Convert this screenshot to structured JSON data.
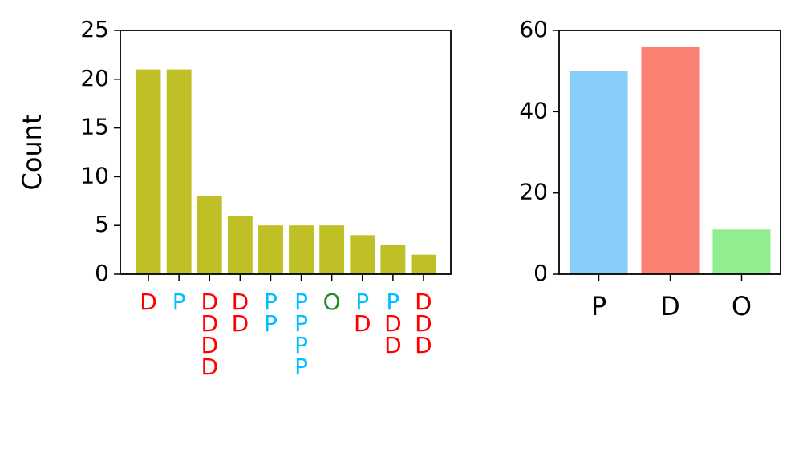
{
  "chart_data": [
    {
      "type": "bar",
      "ylabel": "Count",
      "categories": [
        [
          "D"
        ],
        [
          "P"
        ],
        [
          "D",
          "D",
          "D",
          "D"
        ],
        [
          "D",
          "D"
        ],
        [
          "P",
          "P"
        ],
        [
          "P",
          "P",
          "P",
          "P"
        ],
        [
          "O"
        ],
        [
          "P",
          "D"
        ],
        [
          "P",
          "D",
          "D"
        ],
        [
          "D",
          "D",
          "D"
        ]
      ],
      "values": [
        21,
        21,
        8,
        6,
        5,
        5,
        5,
        4,
        3,
        2
      ],
      "color": "#bfbf26",
      "label_colors": {
        "D": "#ff0000",
        "P": "#00bfff",
        "O": "#228b22"
      },
      "ylim": [
        0,
        25
      ],
      "yticks": [
        0,
        5,
        10,
        15,
        20,
        25
      ]
    },
    {
      "type": "bar",
      "categories": [
        "P",
        "D",
        "O"
      ],
      "values": [
        50,
        56,
        11
      ],
      "colors": [
        "#87cefa",
        "#fa8072",
        "#90ee90"
      ],
      "ylim": [
        0,
        60
      ],
      "yticks": [
        0,
        20,
        40,
        60
      ]
    }
  ]
}
